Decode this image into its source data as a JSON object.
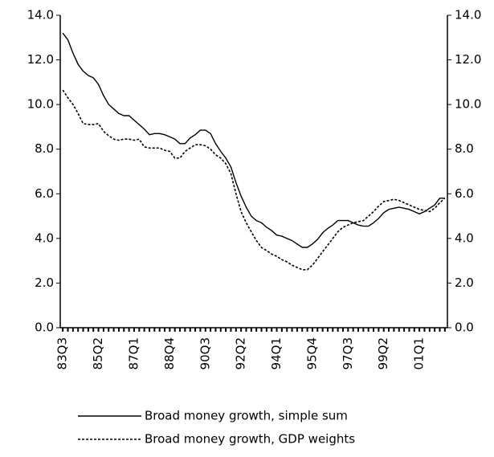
{
  "chart_data": {
    "type": "line",
    "categories": [
      "83Q3",
      null,
      null,
      null,
      null,
      null,
      null,
      "85Q2",
      null,
      null,
      null,
      null,
      null,
      null,
      "87Q1",
      null,
      null,
      null,
      null,
      null,
      null,
      "88Q4",
      null,
      null,
      null,
      null,
      null,
      null,
      "90Q3",
      null,
      null,
      null,
      null,
      null,
      null,
      "92Q2",
      null,
      null,
      null,
      null,
      null,
      null,
      "94Q1",
      null,
      null,
      null,
      null,
      null,
      null,
      "95Q4",
      null,
      null,
      null,
      null,
      null,
      null,
      "97Q3",
      null,
      null,
      null,
      null,
      null,
      null,
      "99Q2",
      null,
      null,
      null,
      null,
      null,
      null,
      "01Q1",
      null,
      null,
      null,
      null,
      null
    ],
    "series": [
      {
        "name": "Broad money growth, simple sum",
        "color": "#000000",
        "dash": "solid",
        "values": [
          13.2,
          12.9,
          12.3,
          11.8,
          11.5,
          11.3,
          11.2,
          10.9,
          10.4,
          10.0,
          9.8,
          9.6,
          9.5,
          9.5,
          9.3,
          9.1,
          8.9,
          8.65,
          8.7,
          8.7,
          8.65,
          8.55,
          8.45,
          8.25,
          8.25,
          8.5,
          8.65,
          8.85,
          8.85,
          8.7,
          8.25,
          7.9,
          7.6,
          7.2,
          6.5,
          5.9,
          5.4,
          5.0,
          4.8,
          4.7,
          4.5,
          4.35,
          4.15,
          4.1,
          4.0,
          3.9,
          3.75,
          3.6,
          3.6,
          3.75,
          3.95,
          4.25,
          4.45,
          4.6,
          4.8,
          4.8,
          4.8,
          4.7,
          4.6,
          4.55,
          4.55,
          4.7,
          4.9,
          5.15,
          5.3,
          5.35,
          5.4,
          5.35,
          5.3,
          5.2,
          5.1,
          5.2,
          5.35,
          5.5,
          5.8,
          5.8
        ]
      },
      {
        "name": "Broad money growth, GDP weights",
        "color": "#000000",
        "dash": "dashed",
        "values": [
          10.65,
          10.3,
          10.0,
          9.6,
          9.15,
          9.1,
          9.1,
          9.15,
          8.8,
          8.6,
          8.45,
          8.4,
          8.45,
          8.45,
          8.4,
          8.45,
          8.1,
          8.05,
          8.05,
          8.05,
          7.95,
          7.9,
          7.6,
          7.6,
          7.9,
          8.05,
          8.2,
          8.2,
          8.15,
          8.0,
          7.75,
          7.6,
          7.35,
          6.9,
          6.0,
          5.2,
          4.7,
          4.3,
          3.9,
          3.6,
          3.45,
          3.3,
          3.2,
          3.05,
          2.95,
          2.8,
          2.7,
          2.6,
          2.6,
          2.8,
          3.1,
          3.4,
          3.7,
          4.0,
          4.3,
          4.5,
          4.6,
          4.7,
          4.75,
          4.8,
          5.0,
          5.2,
          5.45,
          5.65,
          5.7,
          5.75,
          5.7,
          5.6,
          5.5,
          5.4,
          5.3,
          5.25,
          5.2,
          5.35,
          5.6,
          5.8
        ]
      }
    ],
    "ylim": [
      0,
      14
    ],
    "yticks": [
      {
        "value": 0,
        "label": "0.0"
      },
      {
        "value": 2,
        "label": "2.0"
      },
      {
        "value": 4,
        "label": "4.0"
      },
      {
        "value": 6,
        "label": "6.0"
      },
      {
        "value": 8,
        "label": "8.0"
      },
      {
        "value": 10,
        "label": "10.0"
      },
      {
        "value": 12,
        "label": "12.0"
      },
      {
        "value": 14,
        "label": "14.0"
      }
    ],
    "y2lim": [
      0,
      14
    ],
    "y2ticks": [
      {
        "value": 0,
        "label": "0.0"
      },
      {
        "value": 2,
        "label": "2.0"
      },
      {
        "value": 4,
        "label": "4.0"
      },
      {
        "value": 6,
        "label": "6.0"
      },
      {
        "value": 8,
        "label": "8.0"
      },
      {
        "value": 10,
        "label": "10.0"
      },
      {
        "value": 12,
        "label": "12.0"
      },
      {
        "value": 14,
        "label": "14.0"
      }
    ],
    "grid": false
  }
}
